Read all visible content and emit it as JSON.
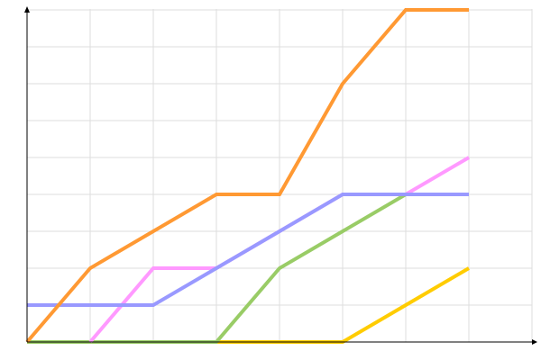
{
  "chart_data": {
    "type": "line",
    "title": "",
    "xlabel": "",
    "ylabel": "",
    "x": [
      0,
      1,
      2,
      3,
      4,
      5,
      6,
      7
    ],
    "xlim": [
      0,
      8
    ],
    "ylim": [
      0,
      9
    ],
    "grid": true,
    "legend": "none",
    "series": [
      {
        "color": "#ffcc00",
        "values": [
          0,
          0,
          0,
          0,
          0,
          0,
          1,
          2
        ]
      },
      {
        "color": "#99cc66",
        "values": [
          0,
          0,
          0,
          0,
          2,
          3,
          4,
          4
        ]
      },
      {
        "color": "#ff99ff",
        "values": [
          null,
          0,
          2,
          2,
          3,
          4,
          4,
          5
        ]
      },
      {
        "color": "#9999ff",
        "values": [
          1,
          1,
          1,
          2,
          3,
          4,
          4,
          4
        ]
      },
      {
        "color": "#ff9933",
        "values": [
          0,
          2,
          3,
          4,
          4,
          7,
          9,
          9
        ]
      }
    ]
  }
}
